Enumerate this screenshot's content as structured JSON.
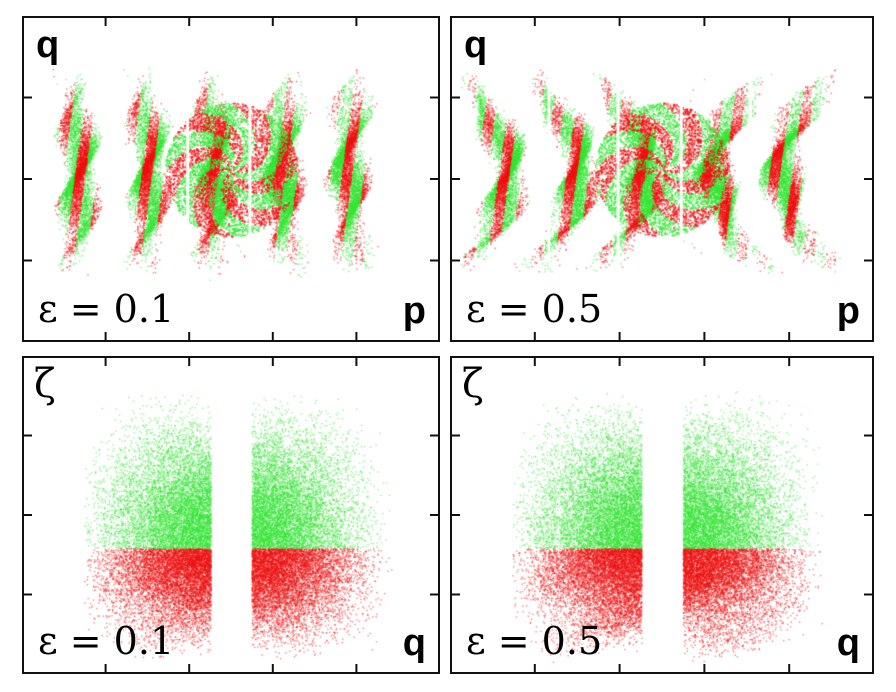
{
  "colors": {
    "positive": "#33e633",
    "negative": "#ee1111",
    "frame": "#111111"
  },
  "chart_data": [
    {
      "type": "scatter",
      "panel": "top-left",
      "ylabel": "q",
      "xlabel": "p",
      "annotation": "ε = 0.1"
    },
    {
      "type": "scatter",
      "panel": "top-right",
      "ylabel": "q",
      "xlabel": "p",
      "annotation": "ε = 0.5"
    },
    {
      "type": "scatter",
      "panel": "bottom-left",
      "ylabel": "ζ",
      "xlabel": "q",
      "annotation": "ε = 0.1"
    },
    {
      "type": "scatter",
      "panel": "bottom-right",
      "ylabel": "ζ",
      "xlabel": "q",
      "annotation": "ε = 0.5"
    }
  ]
}
